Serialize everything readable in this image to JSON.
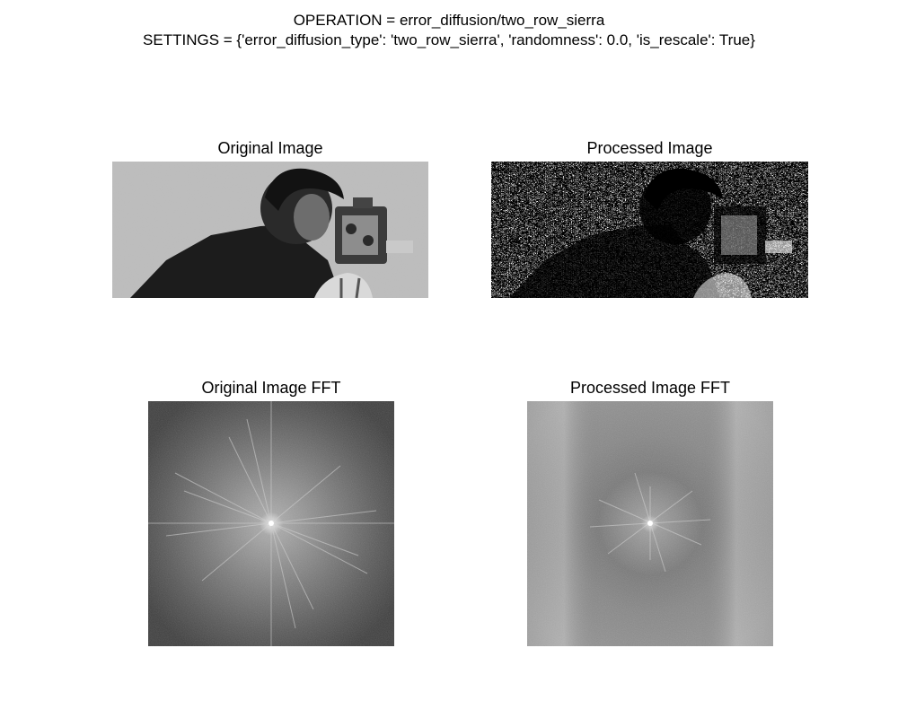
{
  "figure": {
    "operation_line": "OPERATION = error_diffusion/two_row_sierra",
    "settings_line": "SETTINGS = {'error_diffusion_type': 'two_row_sierra', 'randomness': 0.0, 'is_rescale': True}"
  },
  "panels": {
    "original": {
      "title": "Original Image"
    },
    "processed": {
      "title": "Processed Image"
    },
    "original_fft": {
      "title": "Original Image FFT"
    },
    "processed_fft": {
      "title": "Processed Image FFT"
    }
  },
  "colors": {
    "original_bg": "#b8b8b8",
    "subject_dark": "#1a1a1a",
    "fft_dark": "#3a3a3a",
    "fft_mid": "#8c8c8c",
    "fft_center": "#f4f4f4"
  }
}
